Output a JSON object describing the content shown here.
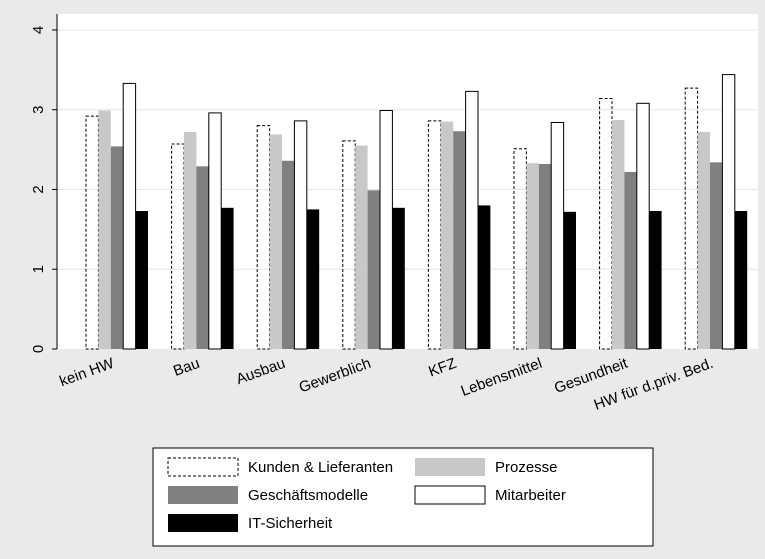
{
  "chart_data": {
    "type": "bar",
    "categories": [
      "kein HW",
      "Bau",
      "Ausbau",
      "Gewerblich",
      "KFZ",
      "Lebensmittel",
      "Gesundheit",
      "HW für d.priv. Bed."
    ],
    "series": [
      {
        "name": "Kunden & Lieferanten",
        "style": "dashed-outline",
        "values": [
          2.92,
          2.57,
          2.8,
          2.61,
          2.86,
          2.51,
          3.14,
          3.27
        ]
      },
      {
        "name": "Prozesse",
        "color": "#c8c8c8",
        "values": [
          2.99,
          2.72,
          2.69,
          2.55,
          2.85,
          2.33,
          2.87,
          2.72
        ]
      },
      {
        "name": "Geschäftsmodelle",
        "color": "#808080",
        "values": [
          2.54,
          2.29,
          2.36,
          1.99,
          2.73,
          2.32,
          2.22,
          2.34
        ]
      },
      {
        "name": "Mitarbeiter",
        "color": "#ffffff",
        "values": [
          3.33,
          2.96,
          2.86,
          2.99,
          3.23,
          2.84,
          3.08,
          3.44
        ]
      },
      {
        "name": "IT-Sicherheit",
        "color": "#000000",
        "values": [
          1.73,
          1.77,
          1.75,
          1.77,
          1.8,
          1.72,
          1.73,
          1.73
        ]
      }
    ],
    "yticks": [
      "0",
      "1",
      "2",
      "3",
      "4"
    ],
    "ylim": [
      0,
      4.2
    ],
    "grid": true,
    "legend_position": "bottom"
  }
}
